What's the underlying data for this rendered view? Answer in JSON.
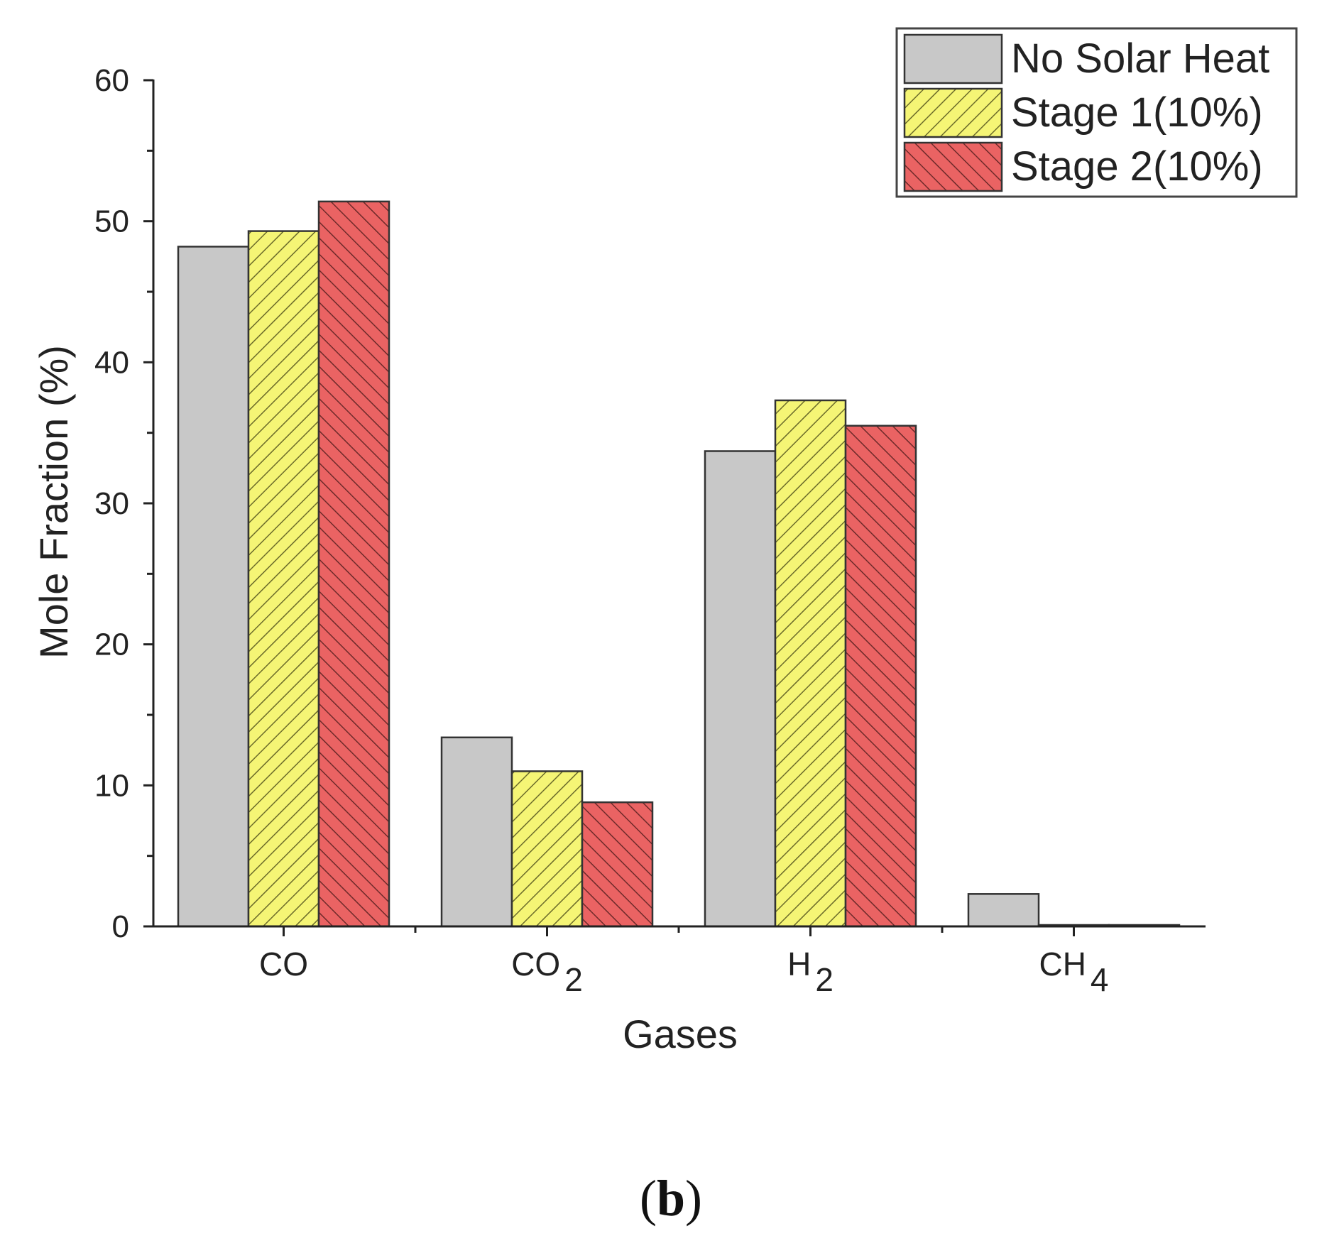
{
  "chart_data": {
    "type": "bar",
    "title": "",
    "xlabel": "Gases",
    "ylabel": "Mole Fraction (%)",
    "ylim": [
      0,
      60
    ],
    "yticks": [
      0,
      10,
      20,
      30,
      40,
      50,
      60
    ],
    "grid": false,
    "legend_position": "top-right",
    "categories": [
      {
        "base": "CO",
        "sub": ""
      },
      {
        "base": "CO",
        "sub": "2"
      },
      {
        "base": "H",
        "sub": "2"
      },
      {
        "base": "CH",
        "sub": "4"
      }
    ],
    "series": [
      {
        "name": "No Solar Heat",
        "values": [
          48.2,
          13.4,
          33.7,
          2.3
        ],
        "color": "#c8c8c8",
        "pattern": "none"
      },
      {
        "name": "Stage 1(10%)",
        "values": [
          49.3,
          11.0,
          37.3,
          0.1
        ],
        "color": "#f5f575",
        "pattern": "hatch-forward"
      },
      {
        "name": "Stage 2(10%)",
        "values": [
          51.4,
          8.8,
          35.5,
          0.1
        ],
        "color": "#ea6363",
        "pattern": "hatch-back"
      }
    ]
  },
  "panel_label": {
    "open": "(",
    "letter": "b",
    "close": ")"
  }
}
